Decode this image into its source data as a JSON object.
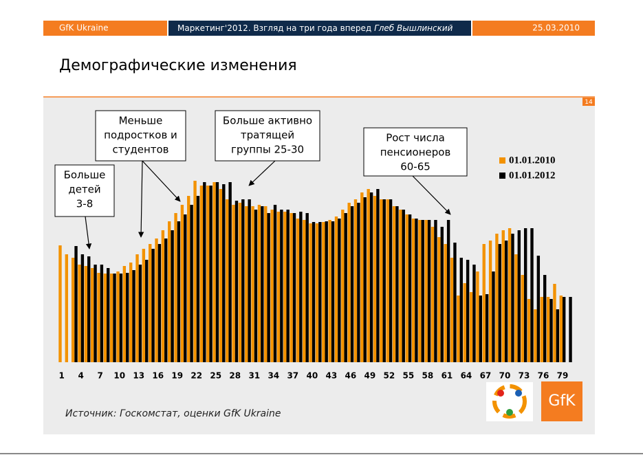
{
  "header": {
    "left": "GfK Ukraine",
    "center": "Маркетинг'2012. Взгляд на три года вперед",
    "center_author": "Глеб Вышлинский",
    "right": "25.03.2010"
  },
  "title": "Демографические изменения",
  "page_number": "14",
  "source": "Источник: Госкомстат, оценки GfK Ukraine",
  "logo": "GfK",
  "chart_data": {
    "type": "bar",
    "categories": [
      1,
      null,
      null,
      4,
      null,
      null,
      7,
      null,
      null,
      10,
      null,
      null,
      13,
      null,
      null,
      16,
      null,
      null,
      19,
      null,
      null,
      22,
      null,
      null,
      25,
      null,
      null,
      28,
      null,
      null,
      31,
      null,
      null,
      34,
      null,
      null,
      37,
      null,
      null,
      40,
      null,
      null,
      43,
      null,
      null,
      46,
      null,
      null,
      49,
      null,
      null,
      52,
      null,
      null,
      55,
      null,
      null,
      58,
      null,
      null,
      61,
      null,
      null,
      64,
      null,
      null,
      67,
      null,
      null,
      70,
      null,
      null,
      73,
      null,
      null,
      76,
      null,
      null,
      79,
      null
    ],
    "series": [
      {
        "name": "01.01.2010",
        "color": "#f39200",
        "values": [
          170,
          157,
          152,
          142,
          140,
          137,
          130,
          129,
          129,
          132,
          140,
          145,
          157,
          165,
          172,
          180,
          192,
          205,
          217,
          229,
          242,
          264,
          257,
          257,
          262,
          252,
          237,
          229,
          232,
          227,
          227,
          229,
          227,
          222,
          219,
          219,
          217,
          209,
          207,
          202,
          202,
          204,
          207,
          212,
          222,
          232,
          237,
          247,
          252,
          242,
          237,
          237,
          227,
          222,
          215,
          209,
          207,
          207,
          197,
          182,
          172,
          152,
          97,
          115,
          102,
          132,
          172,
          177,
          187,
          192,
          195,
          157,
          127,
          92,
          77,
          95,
          95,
          114,
          97,
          null
        ]
      },
      {
        "name": "01.01.2012",
        "color": "#000000",
        "values": [
          null,
          null,
          169,
          157,
          154,
          142,
          142,
          137,
          129,
          129,
          130,
          134,
          142,
          149,
          165,
          172,
          180,
          192,
          205,
          215,
          229,
          242,
          262,
          257,
          262,
          259,
          262,
          235,
          237,
          237,
          222,
          227,
          217,
          229,
          222,
          222,
          217,
          219,
          217,
          204,
          204,
          205,
          205,
          209,
          217,
          227,
          232,
          240,
          247,
          252,
          237,
          237,
          227,
          222,
          215,
          209,
          207,
          207,
          207,
          197,
          207,
          174,
          152,
          149,
          142,
          97,
          99,
          132,
          172,
          177,
          187,
          192,
          195,
          195,
          155,
          127,
          92,
          77,
          95,
          95
        ]
      }
    ],
    "ylim": [
      0,
      270
    ],
    "annotations": [
      {
        "lines": [
          "Больше",
          "детей",
          "3-8"
        ]
      },
      {
        "lines": [
          "Меньше",
          "подростков и",
          "студентов"
        ]
      },
      {
        "lines": [
          "Больше активно",
          "тратящей",
          "группы 25-30"
        ]
      },
      {
        "lines": [
          "Рост числа",
          "пенсионеров",
          "60-65"
        ]
      }
    ]
  }
}
